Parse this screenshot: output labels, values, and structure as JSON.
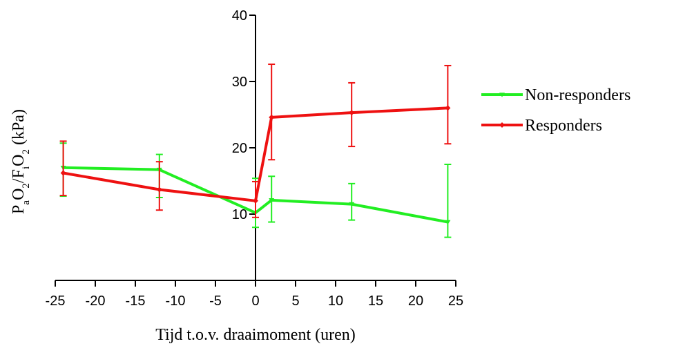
{
  "chart_data": {
    "type": "line",
    "xlabel": "Tijd t.o.v. draaimoment (uren)",
    "ylabel": {
      "parts": [
        {
          "t": "P",
          "s": "n"
        },
        {
          "t": "a",
          "s": "sub"
        },
        {
          "t": "O",
          "s": "n"
        },
        {
          "t": "2",
          "s": "sub"
        },
        {
          "t": "/F",
          "s": "n"
        },
        {
          "t": "i",
          "s": "sub"
        },
        {
          "t": "O",
          "s": "n"
        },
        {
          "t": "2",
          "s": "sub"
        },
        {
          "t": " (kPa)",
          "s": "n"
        }
      ]
    },
    "xlim": [
      -25,
      25
    ],
    "ylim": [
      0,
      40
    ],
    "xticks": [
      -25,
      -20,
      -15,
      -10,
      -5,
      0,
      5,
      10,
      15,
      20,
      25
    ],
    "yticks": [
      10,
      20,
      30,
      40
    ],
    "grid": false,
    "legend_position": "right",
    "series": [
      {
        "name": "Non-responders",
        "color": "#22ee22",
        "marker": "triangle-down",
        "x": [
          -24,
          -12,
          0,
          2,
          12,
          24
        ],
        "y": [
          17.0,
          16.7,
          10.2,
          12.1,
          11.5,
          8.8
        ],
        "err_low": [
          12.7,
          12.5,
          8.0,
          8.8,
          9.1,
          6.5
        ],
        "err_high": [
          20.7,
          19.0,
          15.4,
          15.7,
          14.6,
          17.5
        ]
      },
      {
        "name": "Responders",
        "color": "#ee1111",
        "marker": "diamond",
        "x": [
          -24,
          -12,
          0,
          2,
          12,
          24
        ],
        "y": [
          16.2,
          13.7,
          12.0,
          24.6,
          25.3,
          26.0
        ],
        "err_low": [
          12.8,
          10.6,
          9.5,
          18.2,
          20.2,
          20.6
        ],
        "err_high": [
          21.0,
          17.9,
          14.9,
          32.6,
          29.8,
          32.4
        ]
      }
    ]
  }
}
